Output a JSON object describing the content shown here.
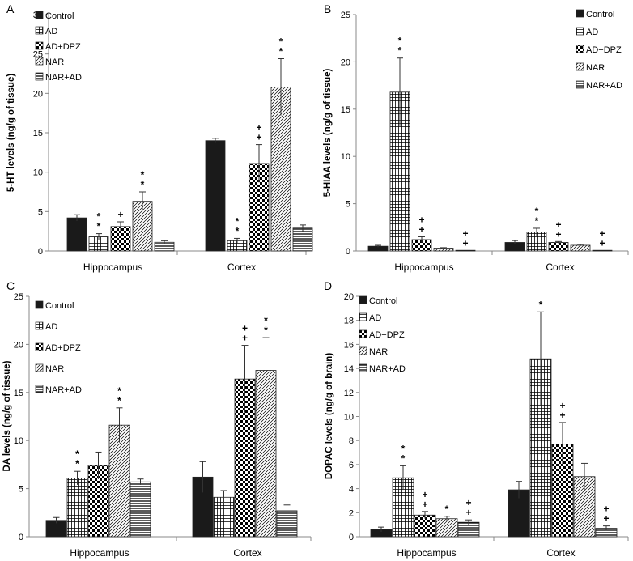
{
  "series_names": [
    "Control",
    "AD",
    "AD+DPZ",
    "NAR",
    "NAR+AD"
  ],
  "categories": [
    "Hippocampus",
    "Cortex"
  ],
  "chart_data": [
    {
      "type": "bar",
      "panel_label": "A",
      "ylabel": "5-HT levels (ng/g of tissue)",
      "ylim": [
        0,
        30
      ],
      "yticks": [
        0,
        5,
        10,
        15,
        20,
        25,
        30
      ],
      "categories": [
        "Hippocampus",
        "Cortex"
      ],
      "series": [
        {
          "name": "Control",
          "values": [
            4.2,
            14.0
          ],
          "errors": [
            0.4,
            0.3
          ],
          "marks": [
            "",
            ""
          ]
        },
        {
          "name": "AD",
          "values": [
            1.8,
            1.3
          ],
          "errors": [
            0.4,
            0.3
          ],
          "marks": [
            "**",
            "**"
          ]
        },
        {
          "name": "AD+DPZ",
          "values": [
            3.1,
            11.1
          ],
          "errors": [
            0.6,
            2.4
          ],
          "marks": [
            "+",
            "++"
          ]
        },
        {
          "name": "NAR",
          "values": [
            6.3,
            20.8
          ],
          "errors": [
            1.2,
            3.6
          ],
          "marks": [
            "**",
            "**"
          ]
        },
        {
          "name": "NAR+AD",
          "values": [
            1.1,
            2.9
          ],
          "errors": [
            0.2,
            0.4
          ],
          "marks": [
            "",
            ""
          ]
        }
      ],
      "legend_position": "top-left"
    },
    {
      "type": "bar",
      "panel_label": "B",
      "ylabel": "5-HIAA levels (ng/g of tissue)",
      "ylim": [
        0,
        25
      ],
      "yticks": [
        0,
        5,
        10,
        15,
        20,
        25
      ],
      "categories": [
        "Hippocampus",
        "Cortex"
      ],
      "series": [
        {
          "name": "Control",
          "values": [
            0.5,
            0.9
          ],
          "errors": [
            0.1,
            0.2
          ],
          "marks": [
            "",
            ""
          ]
        },
        {
          "name": "AD",
          "values": [
            16.8,
            2.0
          ],
          "errors": [
            3.6,
            0.4
          ],
          "marks": [
            "**",
            "**"
          ]
        },
        {
          "name": "AD+DPZ",
          "values": [
            1.2,
            0.9
          ],
          "errors": [
            0.3,
            0.1
          ],
          "marks": [
            "++",
            "++"
          ]
        },
        {
          "name": "NAR",
          "values": [
            0.3,
            0.6
          ],
          "errors": [
            0.05,
            0.1
          ],
          "marks": [
            "",
            ""
          ]
        },
        {
          "name": "NAR+AD",
          "values": [
            0.05,
            0.05
          ],
          "errors": [
            0,
            0
          ],
          "marks": [
            "++",
            "++"
          ]
        }
      ],
      "legend_position": "top-right"
    },
    {
      "type": "bar",
      "panel_label": "C",
      "ylabel": "DA levels (ng/g of tissue)",
      "ylim": [
        0,
        25
      ],
      "yticks": [
        0,
        5,
        10,
        15,
        20,
        25
      ],
      "categories": [
        "Hippocampus",
        "Cortex"
      ],
      "series": [
        {
          "name": "Control",
          "values": [
            1.7,
            6.2
          ],
          "errors": [
            0.3,
            1.6
          ],
          "marks": [
            "",
            ""
          ]
        },
        {
          "name": "AD",
          "values": [
            6.1,
            4.1
          ],
          "errors": [
            0.7,
            0.7
          ],
          "marks": [
            "**",
            ""
          ]
        },
        {
          "name": "AD+DPZ",
          "values": [
            7.4,
            16.4
          ],
          "errors": [
            1.4,
            3.5
          ],
          "marks": [
            "",
            "++"
          ]
        },
        {
          "name": "NAR",
          "values": [
            11.6,
            17.3
          ],
          "errors": [
            1.8,
            3.4
          ],
          "marks": [
            "**",
            "**"
          ]
        },
        {
          "name": "NAR+AD",
          "values": [
            5.7,
            2.7
          ],
          "errors": [
            0.3,
            0.6
          ],
          "marks": [
            "",
            ""
          ]
        }
      ],
      "legend_position": "top-left"
    },
    {
      "type": "bar",
      "panel_label": "D",
      "ylabel": "DOPAC levels (ng/g of brain)",
      "ylim": [
        0,
        20
      ],
      "yticks": [
        0,
        2,
        4,
        6,
        8,
        10,
        12,
        14,
        16,
        18,
        20
      ],
      "categories": [
        "Hippocampus",
        "Cortex"
      ],
      "series": [
        {
          "name": "Control",
          "values": [
            0.6,
            3.9
          ],
          "errors": [
            0.2,
            0.7
          ],
          "marks": [
            "",
            ""
          ]
        },
        {
          "name": "AD",
          "values": [
            4.9,
            14.8
          ],
          "errors": [
            1.0,
            3.9
          ],
          "marks": [
            "**",
            "*"
          ]
        },
        {
          "name": "AD+DPZ",
          "values": [
            1.8,
            7.7
          ],
          "errors": [
            0.3,
            1.8
          ],
          "marks": [
            "++",
            "++"
          ]
        },
        {
          "name": "NAR",
          "values": [
            1.5,
            5.0
          ],
          "errors": [
            0.2,
            1.1
          ],
          "marks": [
            "*",
            ""
          ]
        },
        {
          "name": "NAR+AD",
          "values": [
            1.2,
            0.7
          ],
          "errors": [
            0.2,
            0.2
          ],
          "marks": [
            "++",
            "++"
          ]
        }
      ],
      "legend_position": "top-left"
    }
  ]
}
